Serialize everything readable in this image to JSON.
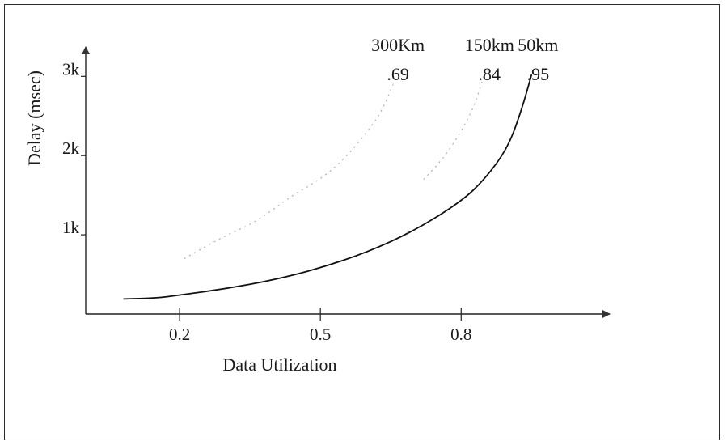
{
  "chart_data": {
    "type": "line",
    "title": "",
    "xlabel": "Data Utilization",
    "ylabel": "Delay (msec)",
    "x_ticks": [
      {
        "value": 0.2,
        "label": "0.2"
      },
      {
        "value": 0.5,
        "label": "0.5"
      },
      {
        "value": 0.8,
        "label": "0.8"
      }
    ],
    "y_ticks": [
      {
        "value": 1000,
        "label": "1k"
      },
      {
        "value": 2000,
        "label": "2k"
      },
      {
        "value": 3000,
        "label": "3k"
      }
    ],
    "xlim": [
      0,
      1.12
    ],
    "ylim": [
      0,
      3800
    ],
    "grid": false,
    "series": [
      {
        "name": "300Km",
        "asymptote_label": ".69",
        "style": "dotted",
        "color": "#b0b0b0",
        "x": [
          0.21,
          0.3,
          0.36,
          0.44,
          0.5,
          0.55,
          0.6,
          0.63,
          0.655
        ],
        "y": [
          700,
          1000,
          1150,
          1500,
          1700,
          1950,
          2300,
          2550,
          2900
        ]
      },
      {
        "name": "150km",
        "asymptote_label": ".84",
        "style": "dotted",
        "color": "#b0b0b0",
        "x": [
          0.72,
          0.76,
          0.8,
          0.83,
          0.85
        ],
        "y": [
          1700,
          1950,
          2300,
          2650,
          3050
        ]
      },
      {
        "name": "50km",
        "asymptote_label": ".95",
        "style": "solid",
        "color": "#111111",
        "x": [
          0.08,
          0.15,
          0.2,
          0.3,
          0.4,
          0.5,
          0.6,
          0.7,
          0.8,
          0.85,
          0.9,
          0.93,
          0.95
        ],
        "y": [
          190,
          200,
          240,
          320,
          430,
          580,
          780,
          1050,
          1420,
          1700,
          2100,
          2600,
          3020
        ]
      }
    ]
  }
}
